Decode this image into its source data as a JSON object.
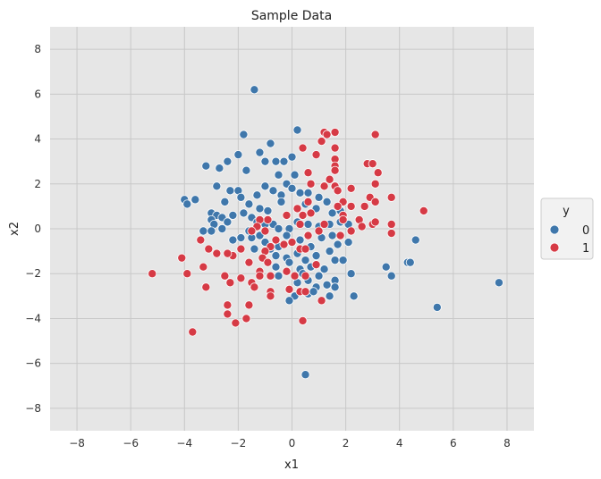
{
  "chart_data": {
    "type": "scatter",
    "title": "Sample Data",
    "xlabel": "x1",
    "ylabel": "x2",
    "xlim": [
      -9,
      9
    ],
    "ylim": [
      -9,
      9
    ],
    "xticks": [
      -8,
      -6,
      -4,
      -2,
      0,
      2,
      4,
      6,
      8
    ],
    "yticks": [
      -8,
      -6,
      -4,
      -2,
      0,
      2,
      4,
      6,
      8
    ],
    "grid": true,
    "legend": {
      "title": "y",
      "position": "center-right outside"
    },
    "series": [
      {
        "name": "0",
        "color": "#3f77ab",
        "points": [
          [
            -1.4,
            6.2
          ],
          [
            0.2,
            4.4
          ],
          [
            -1.8,
            4.2
          ],
          [
            -0.8,
            3.8
          ],
          [
            -1.2,
            3.4
          ],
          [
            -2.4,
            3.0
          ],
          [
            -2.0,
            3.3
          ],
          [
            -3.2,
            2.8
          ],
          [
            -2.7,
            2.7
          ],
          [
            -1.0,
            3.0
          ],
          [
            -0.6,
            3.0
          ],
          [
            -0.3,
            3.0
          ],
          [
            0.0,
            3.2
          ],
          [
            0.1,
            2.4
          ],
          [
            -1.7,
            2.6
          ],
          [
            -0.5,
            2.4
          ],
          [
            -0.2,
            2.0
          ],
          [
            -2.8,
            1.9
          ],
          [
            -2.3,
            1.7
          ],
          [
            -2.0,
            1.7
          ],
          [
            -1.3,
            1.5
          ],
          [
            -1.0,
            1.9
          ],
          [
            -0.7,
            1.7
          ],
          [
            -0.4,
            1.5
          ],
          [
            0.0,
            1.8
          ],
          [
            0.3,
            1.6
          ],
          [
            0.6,
            1.6
          ],
          [
            1.0,
            1.4
          ],
          [
            1.3,
            1.2
          ],
          [
            -4.0,
            1.3
          ],
          [
            -3.6,
            1.3
          ],
          [
            -3.9,
            1.1
          ],
          [
            -1.9,
            1.4
          ],
          [
            -2.5,
            1.2
          ],
          [
            -1.6,
            1.1
          ],
          [
            -1.2,
            0.9
          ],
          [
            -0.9,
            0.8
          ],
          [
            -0.4,
            1.2
          ],
          [
            0.5,
            1.1
          ],
          [
            0.9,
            0.9
          ],
          [
            1.5,
            0.7
          ],
          [
            1.8,
            0.8
          ],
          [
            -3.0,
            0.7
          ],
          [
            -2.8,
            0.6
          ],
          [
            -2.6,
            0.5
          ],
          [
            -3.0,
            0.4
          ],
          [
            -2.9,
            0.2
          ],
          [
            -2.4,
            0.3
          ],
          [
            -2.2,
            0.6
          ],
          [
            -1.8,
            0.7
          ],
          [
            -1.5,
            0.5
          ],
          [
            -1.3,
            0.3
          ],
          [
            -1.0,
            0.2
          ],
          [
            -0.7,
            0.2
          ],
          [
            -0.5,
            0.0
          ],
          [
            -0.1,
            0.0
          ],
          [
            0.2,
            0.3
          ],
          [
            0.6,
            0.2
          ],
          [
            1.0,
            0.1
          ],
          [
            1.4,
            0.2
          ],
          [
            1.8,
            0.3
          ],
          [
            2.1,
            0.2
          ],
          [
            -3.3,
            -0.1
          ],
          [
            -3.0,
            -0.1
          ],
          [
            -2.6,
            0.0
          ],
          [
            -2.2,
            -0.5
          ],
          [
            -1.6,
            -0.1
          ],
          [
            -1.5,
            -0.4
          ],
          [
            -1.2,
            -0.3
          ],
          [
            -1.0,
            -0.6
          ],
          [
            -0.8,
            -0.9
          ],
          [
            -0.5,
            -0.8
          ],
          [
            -0.2,
            -0.3
          ],
          [
            0.3,
            -0.5
          ],
          [
            0.7,
            -0.8
          ],
          [
            1.1,
            -0.4
          ],
          [
            1.5,
            -0.3
          ],
          [
            1.7,
            -0.7
          ],
          [
            2.1,
            -0.6
          ],
          [
            -1.9,
            -0.4
          ],
          [
            -1.4,
            -0.9
          ],
          [
            -0.6,
            -1.2
          ],
          [
            -0.2,
            -1.3
          ],
          [
            0.2,
            -1.1
          ],
          [
            0.5,
            -1.4
          ],
          [
            0.9,
            -1.2
          ],
          [
            1.4,
            -1.0
          ],
          [
            -0.6,
            -1.7
          ],
          [
            -0.1,
            -1.5
          ],
          [
            0.3,
            -1.8
          ],
          [
            0.7,
            -1.7
          ],
          [
            1.2,
            -1.8
          ],
          [
            1.6,
            -1.4
          ],
          [
            1.9,
            -1.4
          ],
          [
            2.2,
            -2.0
          ],
          [
            0.4,
            -2.0
          ],
          [
            -0.5,
            -2.1
          ],
          [
            0.2,
            -2.4
          ],
          [
            0.6,
            -2.3
          ],
          [
            1.0,
            -2.1
          ],
          [
            1.3,
            -2.5
          ],
          [
            1.6,
            -2.3
          ],
          [
            0.9,
            -2.6
          ],
          [
            0.6,
            -2.9
          ],
          [
            0.1,
            -3.0
          ],
          [
            -0.1,
            -3.2
          ],
          [
            1.6,
            -2.6
          ],
          [
            1.4,
            -3.0
          ],
          [
            0.8,
            -2.8
          ],
          [
            2.3,
            -3.0
          ],
          [
            3.5,
            -1.7
          ],
          [
            3.7,
            -2.1
          ],
          [
            4.3,
            -1.5
          ],
          [
            4.4,
            -1.5
          ],
          [
            4.6,
            -0.5
          ],
          [
            5.4,
            -3.5
          ],
          [
            7.7,
            -2.4
          ],
          [
            0.5,
            -6.5
          ]
        ]
      },
      {
        "name": "1",
        "color": "#d63a45",
        "points": [
          [
            1.6,
            4.3
          ],
          [
            1.2,
            4.3
          ],
          [
            1.1,
            3.9
          ],
          [
            1.3,
            4.2
          ],
          [
            0.4,
            3.6
          ],
          [
            0.9,
            3.3
          ],
          [
            1.6,
            3.6
          ],
          [
            1.6,
            3.1
          ],
          [
            1.6,
            2.8
          ],
          [
            1.6,
            2.6
          ],
          [
            0.6,
            2.5
          ],
          [
            1.4,
            2.2
          ],
          [
            1.6,
            1.9
          ],
          [
            1.7,
            1.7
          ],
          [
            2.2,
            1.8
          ],
          [
            1.2,
            1.9
          ],
          [
            0.7,
            2.0
          ],
          [
            0.6,
            1.2
          ],
          [
            1.9,
            1.2
          ],
          [
            1.7,
            1.0
          ],
          [
            2.2,
            1.0
          ],
          [
            2.5,
            0.4
          ],
          [
            3.1,
            4.2
          ],
          [
            2.8,
            2.9
          ],
          [
            3.0,
            2.9
          ],
          [
            3.2,
            2.5
          ],
          [
            3.1,
            2.0
          ],
          [
            2.9,
            1.4
          ],
          [
            3.1,
            1.2
          ],
          [
            2.7,
            1.0
          ],
          [
            2.6,
            0.1
          ],
          [
            3.0,
            0.2
          ],
          [
            3.1,
            0.3
          ],
          [
            3.7,
            1.4
          ],
          [
            3.7,
            0.2
          ],
          [
            3.7,
            -0.2
          ],
          [
            4.9,
            0.8
          ],
          [
            2.2,
            -0.1
          ],
          [
            1.9,
            0.6
          ],
          [
            1.9,
            0.4
          ],
          [
            1.8,
            -0.3
          ],
          [
            1.2,
            0.2
          ],
          [
            1.0,
            -0.1
          ],
          [
            0.6,
            -0.3
          ],
          [
            0.3,
            0.2
          ],
          [
            0.2,
            0.9
          ],
          [
            0.4,
            0.6
          ],
          [
            0.7,
            0.7
          ],
          [
            -0.2,
            0.6
          ],
          [
            -0.9,
            0.4
          ],
          [
            -1.2,
            0.4
          ],
          [
            -1.3,
            0.1
          ],
          [
            -1.5,
            -0.1
          ],
          [
            -1.0,
            -0.1
          ],
          [
            -0.6,
            -0.5
          ],
          [
            -0.8,
            -0.8
          ],
          [
            -0.3,
            -0.7
          ],
          [
            0.0,
            -0.6
          ],
          [
            0.3,
            -0.9
          ],
          [
            0.5,
            -0.9
          ],
          [
            -1.0,
            -1.0
          ],
          [
            -1.1,
            -1.3
          ],
          [
            -0.9,
            -1.5
          ],
          [
            -1.6,
            -1.5
          ],
          [
            -1.9,
            -0.9
          ],
          [
            -2.2,
            -1.2
          ],
          [
            -2.4,
            -1.1
          ],
          [
            -2.8,
            -1.1
          ],
          [
            -3.1,
            -0.9
          ],
          [
            -3.4,
            -0.5
          ],
          [
            -1.2,
            -1.9
          ],
          [
            -0.8,
            -2.1
          ],
          [
            -0.2,
            -1.9
          ],
          [
            0.1,
            -2.1
          ],
          [
            0.5,
            -2.1
          ],
          [
            0.9,
            -1.6
          ],
          [
            -4.1,
            -1.3
          ],
          [
            -5.2,
            -2.0
          ],
          [
            -3.9,
            -2.0
          ],
          [
            -3.3,
            -1.7
          ],
          [
            -2.5,
            -2.1
          ],
          [
            -2.3,
            -2.4
          ],
          [
            -1.9,
            -2.2
          ],
          [
            -1.5,
            -2.4
          ],
          [
            -1.2,
            -2.1
          ],
          [
            -1.4,
            -2.6
          ],
          [
            -3.2,
            -2.6
          ],
          [
            -0.8,
            -2.8
          ],
          [
            -0.8,
            -3.0
          ],
          [
            -0.1,
            -2.7
          ],
          [
            0.3,
            -2.8
          ],
          [
            0.5,
            -2.8
          ],
          [
            1.1,
            -3.2
          ],
          [
            -2.4,
            -3.4
          ],
          [
            -1.6,
            -3.4
          ],
          [
            -2.4,
            -3.8
          ],
          [
            -1.7,
            -4.0
          ],
          [
            -2.1,
            -4.2
          ],
          [
            0.4,
            -4.1
          ],
          [
            -3.7,
            -4.6
          ]
        ]
      }
    ]
  }
}
